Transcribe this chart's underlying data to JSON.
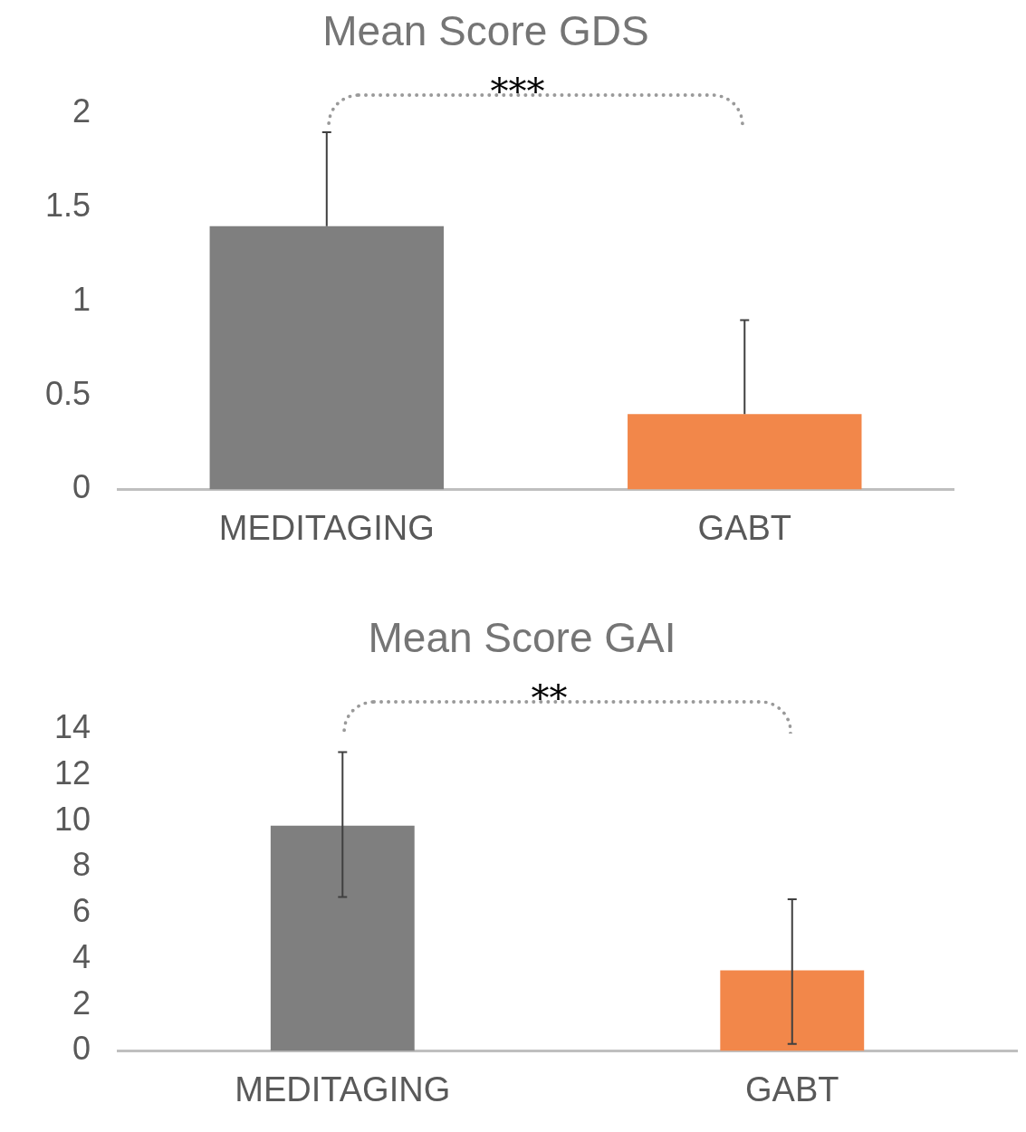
{
  "chart_data": [
    {
      "type": "bar",
      "title": "Mean Score GDS",
      "categories": [
        "MEDITAGING",
        "GABT"
      ],
      "values": [
        1.4,
        0.4
      ],
      "colors": [
        "#7f7f7f",
        "#f2874a"
      ],
      "errors": [
        [
          1.4,
          1.9
        ],
        [
          0.4,
          0.9
        ]
      ],
      "ylim": [
        0,
        2
      ],
      "yticks": [
        0,
        0.5,
        1,
        1.5,
        2
      ],
      "grid": false,
      "legend": false,
      "annotations": [
        "***"
      ]
    },
    {
      "type": "bar",
      "title": "Mean Score GAI",
      "categories": [
        "MEDITAGING",
        "GABT"
      ],
      "values": [
        9.8,
        3.5
      ],
      "colors": [
        "#7f7f7f",
        "#f2874a"
      ],
      "errors": [
        [
          6.7,
          13.0
        ],
        [
          0.3,
          6.6
        ]
      ],
      "ylim": [
        0,
        14
      ],
      "yticks": [
        0,
        2,
        4,
        6,
        8,
        10,
        12,
        14
      ],
      "grid": false,
      "legend": false,
      "annotations": [
        "**"
      ]
    }
  ]
}
